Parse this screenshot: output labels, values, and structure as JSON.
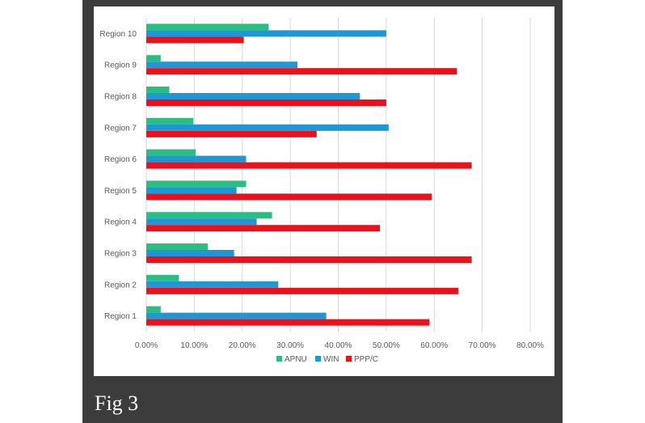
{
  "caption": "Fig 3",
  "colors": {
    "background_frame": "#3c3c3c",
    "panel": "#ffffff",
    "gridline": "#d9d9d9",
    "axis_text": "#595959"
  },
  "chart_data": {
    "type": "bar",
    "orientation": "horizontal",
    "categories": [
      "Region 1",
      "Region 2",
      "Region 3",
      "Region 4",
      "Region 5",
      "Region 6",
      "Region 7",
      "Region 8",
      "Region 9",
      "Region 10"
    ],
    "series": [
      {
        "name": "APNU",
        "color": "#2bbd83",
        "values": [
          3.0,
          6.8,
          12.8,
          26.2,
          20.8,
          10.3,
          9.8,
          4.8,
          3.0,
          25.5
        ]
      },
      {
        "name": "WIN",
        "color": "#1f97d4",
        "values": [
          37.5,
          27.5,
          18.3,
          23.0,
          18.8,
          20.8,
          50.5,
          44.5,
          31.5,
          50.0
        ]
      },
      {
        "name": "PPP/C",
        "color": "#e8111c",
        "values": [
          59.0,
          65.0,
          67.8,
          48.7,
          59.5,
          67.8,
          35.5,
          50.0,
          64.7,
          20.3
        ]
      }
    ],
    "xlim": [
      0,
      80
    ],
    "xticks": [
      "0.00%",
      "10.00%",
      "20.00%",
      "30.00%",
      "40.00%",
      "50.00%",
      "60.00%",
      "70.00%",
      "80.00%"
    ],
    "xlabel": "",
    "ylabel": "",
    "title": "",
    "grid": true,
    "legend_position": "bottom"
  }
}
